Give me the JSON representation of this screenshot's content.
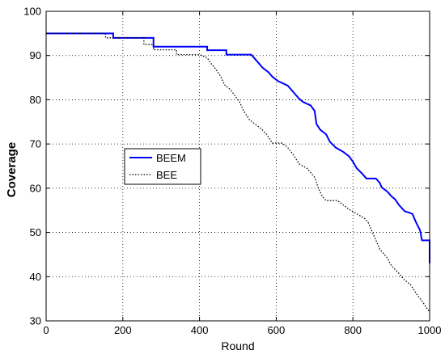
{
  "chart_data": {
    "type": "line",
    "xlabel": "Round",
    "ylabel": "Coverage",
    "xlim": [
      0,
      1000
    ],
    "ylim": [
      30,
      100
    ],
    "xticks": [
      0,
      200,
      400,
      600,
      800,
      1000
    ],
    "yticks": [
      30,
      40,
      50,
      60,
      70,
      80,
      90,
      100
    ],
    "grid": true,
    "legend_position": "middle-left",
    "series": [
      {
        "name": "BEEM",
        "color": "#0000ff",
        "style": "solid",
        "points": [
          [
            0,
            95
          ],
          [
            175,
            95
          ],
          [
            175,
            94
          ],
          [
            280,
            94
          ],
          [
            280,
            92
          ],
          [
            420,
            92
          ],
          [
            420,
            91.2
          ],
          [
            470,
            91.2
          ],
          [
            470,
            90.2
          ],
          [
            535,
            90.2
          ],
          [
            545,
            89.2
          ],
          [
            555,
            88.2
          ],
          [
            565,
            87.2
          ],
          [
            580,
            86.2
          ],
          [
            590,
            85.2
          ],
          [
            605,
            84.2
          ],
          [
            630,
            83.2
          ],
          [
            640,
            82.2
          ],
          [
            650,
            81.2
          ],
          [
            660,
            80.2
          ],
          [
            670,
            79.5
          ],
          [
            690,
            78.7
          ],
          [
            700,
            77.5
          ],
          [
            705,
            74.5
          ],
          [
            715,
            73.2
          ],
          [
            730,
            72.2
          ],
          [
            740,
            70.5
          ],
          [
            755,
            69.2
          ],
          [
            775,
            68.2
          ],
          [
            790,
            67.2
          ],
          [
            800,
            66
          ],
          [
            810,
            64.5
          ],
          [
            825,
            63.2
          ],
          [
            835,
            62.2
          ],
          [
            860,
            62.2
          ],
          [
            870,
            61.2
          ],
          [
            875,
            60.2
          ],
          [
            890,
            59.2
          ],
          [
            900,
            58.2
          ],
          [
            910,
            57.5
          ],
          [
            920,
            56.2
          ],
          [
            935,
            54.8
          ],
          [
            955,
            54.2
          ],
          [
            965,
            52.2
          ],
          [
            975,
            50.5
          ],
          [
            980,
            48.2
          ],
          [
            1000,
            48.2
          ],
          [
            1000,
            43
          ]
        ]
      },
      {
        "name": "BEE",
        "color": "#000000",
        "style": "dotted",
        "points": [
          [
            0,
            95
          ],
          [
            155,
            95
          ],
          [
            155,
            94
          ],
          [
            255,
            94
          ],
          [
            255,
            92.5
          ],
          [
            280,
            92.5
          ],
          [
            280,
            91.3
          ],
          [
            340,
            91.3
          ],
          [
            340,
            90.2
          ],
          [
            400,
            90.2
          ],
          [
            420,
            89.5
          ],
          [
            430,
            88.2
          ],
          [
            440,
            87.2
          ],
          [
            455,
            85.3
          ],
          [
            465,
            83.4
          ],
          [
            480,
            82.3
          ],
          [
            490,
            81.2
          ],
          [
            505,
            79.4
          ],
          [
            515,
            77.5
          ],
          [
            530,
            75.5
          ],
          [
            545,
            74.5
          ],
          [
            560,
            73.5
          ],
          [
            575,
            72.2
          ],
          [
            590,
            70.2
          ],
          [
            615,
            70.2
          ],
          [
            630,
            69.2
          ],
          [
            645,
            67.5
          ],
          [
            660,
            65.5
          ],
          [
            680,
            64.5
          ],
          [
            700,
            62.5
          ],
          [
            710,
            60
          ],
          [
            720,
            58.2
          ],
          [
            730,
            57.2
          ],
          [
            760,
            57.2
          ],
          [
            775,
            56.2
          ],
          [
            790,
            55.2
          ],
          [
            810,
            54.2
          ],
          [
            830,
            53.2
          ],
          [
            840,
            52.2
          ],
          [
            850,
            50.2
          ],
          [
            860,
            48.2
          ],
          [
            870,
            46.2
          ],
          [
            880,
            45.2
          ],
          [
            890,
            44.2
          ],
          [
            900,
            42.5
          ],
          [
            915,
            41.2
          ],
          [
            935,
            39.2
          ],
          [
            950,
            38.2
          ],
          [
            965,
            36.2
          ],
          [
            980,
            34.5
          ],
          [
            990,
            33.2
          ],
          [
            1000,
            32
          ]
        ]
      }
    ]
  }
}
